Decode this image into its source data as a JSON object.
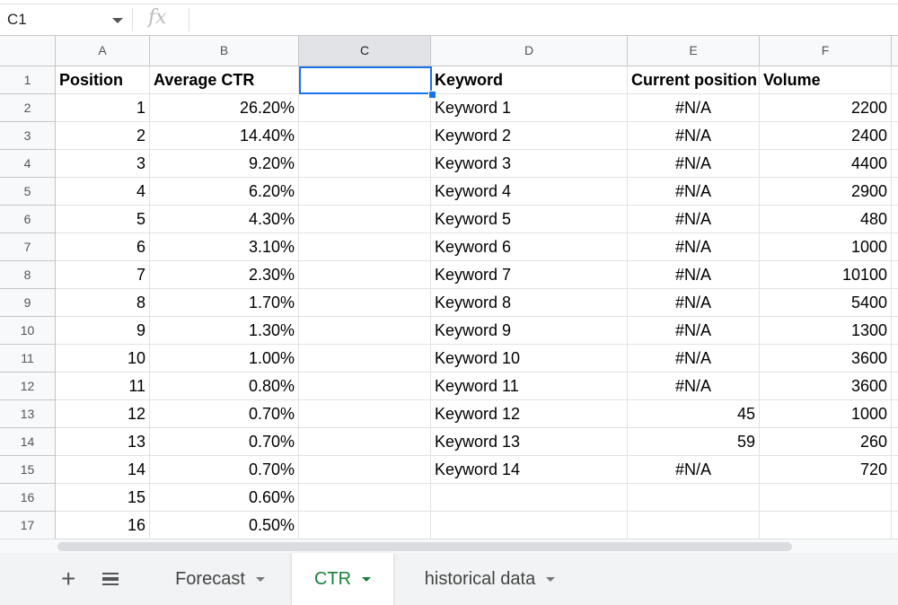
{
  "formula_bar": {
    "name_box": "C1",
    "fx_icon": "fx",
    "formula": ""
  },
  "columns": [
    "A",
    "B",
    "C",
    "D",
    "E",
    "F"
  ],
  "selected_column": "C",
  "selected_cell": "C1",
  "rows": [
    [
      "Position",
      "Average CTR",
      "",
      "Keyword",
      "Current position",
      "Volume"
    ],
    [
      "1",
      "26.20%",
      "",
      "Keyword 1",
      "#N/A",
      "2200"
    ],
    [
      "2",
      "14.40%",
      "",
      "Keyword 2",
      "#N/A",
      "2400"
    ],
    [
      "3",
      "9.20%",
      "",
      "Keyword 3",
      "#N/A",
      "4400"
    ],
    [
      "4",
      "6.20%",
      "",
      "Keyword 4",
      "#N/A",
      "2900"
    ],
    [
      "5",
      "4.30%",
      "",
      "Keyword 5",
      "#N/A",
      "480"
    ],
    [
      "6",
      "3.10%",
      "",
      "Keyword 6",
      "#N/A",
      "1000"
    ],
    [
      "7",
      "2.30%",
      "",
      "Keyword 7",
      "#N/A",
      "10100"
    ],
    [
      "8",
      "1.70%",
      "",
      "Keyword 8",
      "#N/A",
      "5400"
    ],
    [
      "9",
      "1.30%",
      "",
      "Keyword 9",
      "#N/A",
      "1300"
    ],
    [
      "10",
      "1.00%",
      "",
      "Keyword 10",
      "#N/A",
      "3600"
    ],
    [
      "11",
      "0.80%",
      "",
      "Keyword 11",
      "#N/A",
      "3600"
    ],
    [
      "12",
      "0.70%",
      "",
      "Keyword 12",
      "45",
      "1000"
    ],
    [
      "13",
      "0.70%",
      "",
      "Keyword 13",
      "59",
      "260"
    ],
    [
      "14",
      "0.70%",
      "",
      "Keyword 14",
      "#N/A",
      "720"
    ],
    [
      "15",
      "0.60%",
      "",
      "",
      "",
      ""
    ],
    [
      "16",
      "0.50%",
      "",
      "",
      "",
      ""
    ]
  ],
  "sheet_tabs": [
    {
      "label": "Forecast",
      "active": false
    },
    {
      "label": "CTR",
      "active": true
    },
    {
      "label": "historical data",
      "active": false
    }
  ],
  "colors": {
    "accent": "#1a73e8",
    "active_tab": "#188038"
  }
}
